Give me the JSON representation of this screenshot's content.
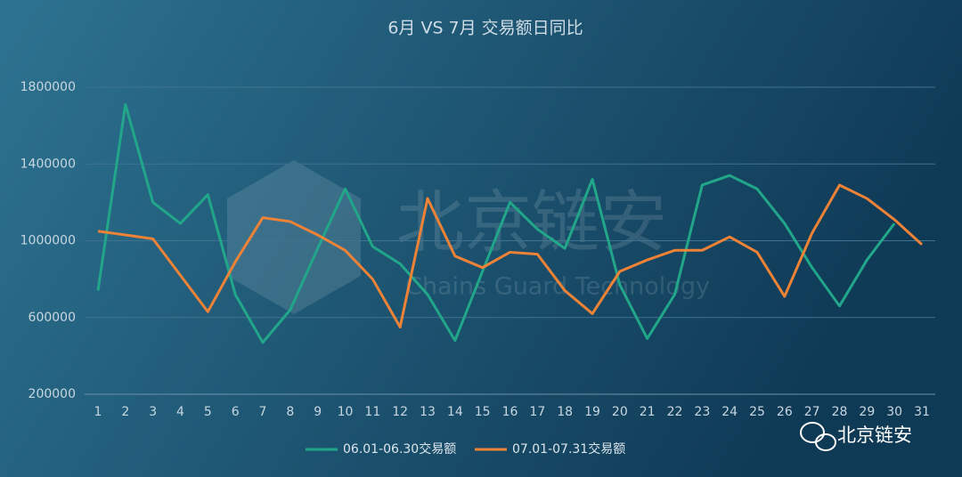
{
  "chart_data": {
    "type": "line",
    "title": "6月 VS 7月 交易额日同比",
    "categories": [
      "1",
      "2",
      "3",
      "4",
      "5",
      "6",
      "7",
      "8",
      "9",
      "10",
      "11",
      "12",
      "13",
      "14",
      "15",
      "16",
      "17",
      "18",
      "19",
      "20",
      "21",
      "22",
      "23",
      "24",
      "25",
      "26",
      "27",
      "28",
      "29",
      "30",
      "31"
    ],
    "series": [
      {
        "name": "06.01-06.30交易额",
        "color": "#22a689",
        "values": [
          740000,
          1710000,
          1200000,
          1090000,
          1240000,
          720000,
          470000,
          640000,
          960000,
          1270000,
          970000,
          880000,
          720000,
          480000,
          840000,
          1200000,
          1060000,
          960000,
          1320000,
          770000,
          490000,
          720000,
          1290000,
          1340000,
          1270000,
          1090000,
          860000,
          660000,
          900000,
          1090000,
          null
        ]
      },
      {
        "name": "07.01-07.31交易额",
        "color": "#ee8236",
        "values": [
          1050000,
          1030000,
          1010000,
          820000,
          630000,
          890000,
          1120000,
          1100000,
          1030000,
          950000,
          800000,
          550000,
          1220000,
          920000,
          860000,
          940000,
          930000,
          740000,
          620000,
          840000,
          900000,
          950000,
          950000,
          1020000,
          940000,
          710000,
          1040000,
          1290000,
          1220000,
          1110000,
          980000
        ]
      }
    ],
    "ylim": [
      200000,
      1800000
    ],
    "yticks": [
      200000,
      600000,
      1000000,
      1400000,
      1800000
    ],
    "grid": true,
    "legend": "bottom",
    "watermark": {
      "title": "北京链安",
      "subtitle": "Chains Guard Technology"
    },
    "brand": "北京链安"
  }
}
